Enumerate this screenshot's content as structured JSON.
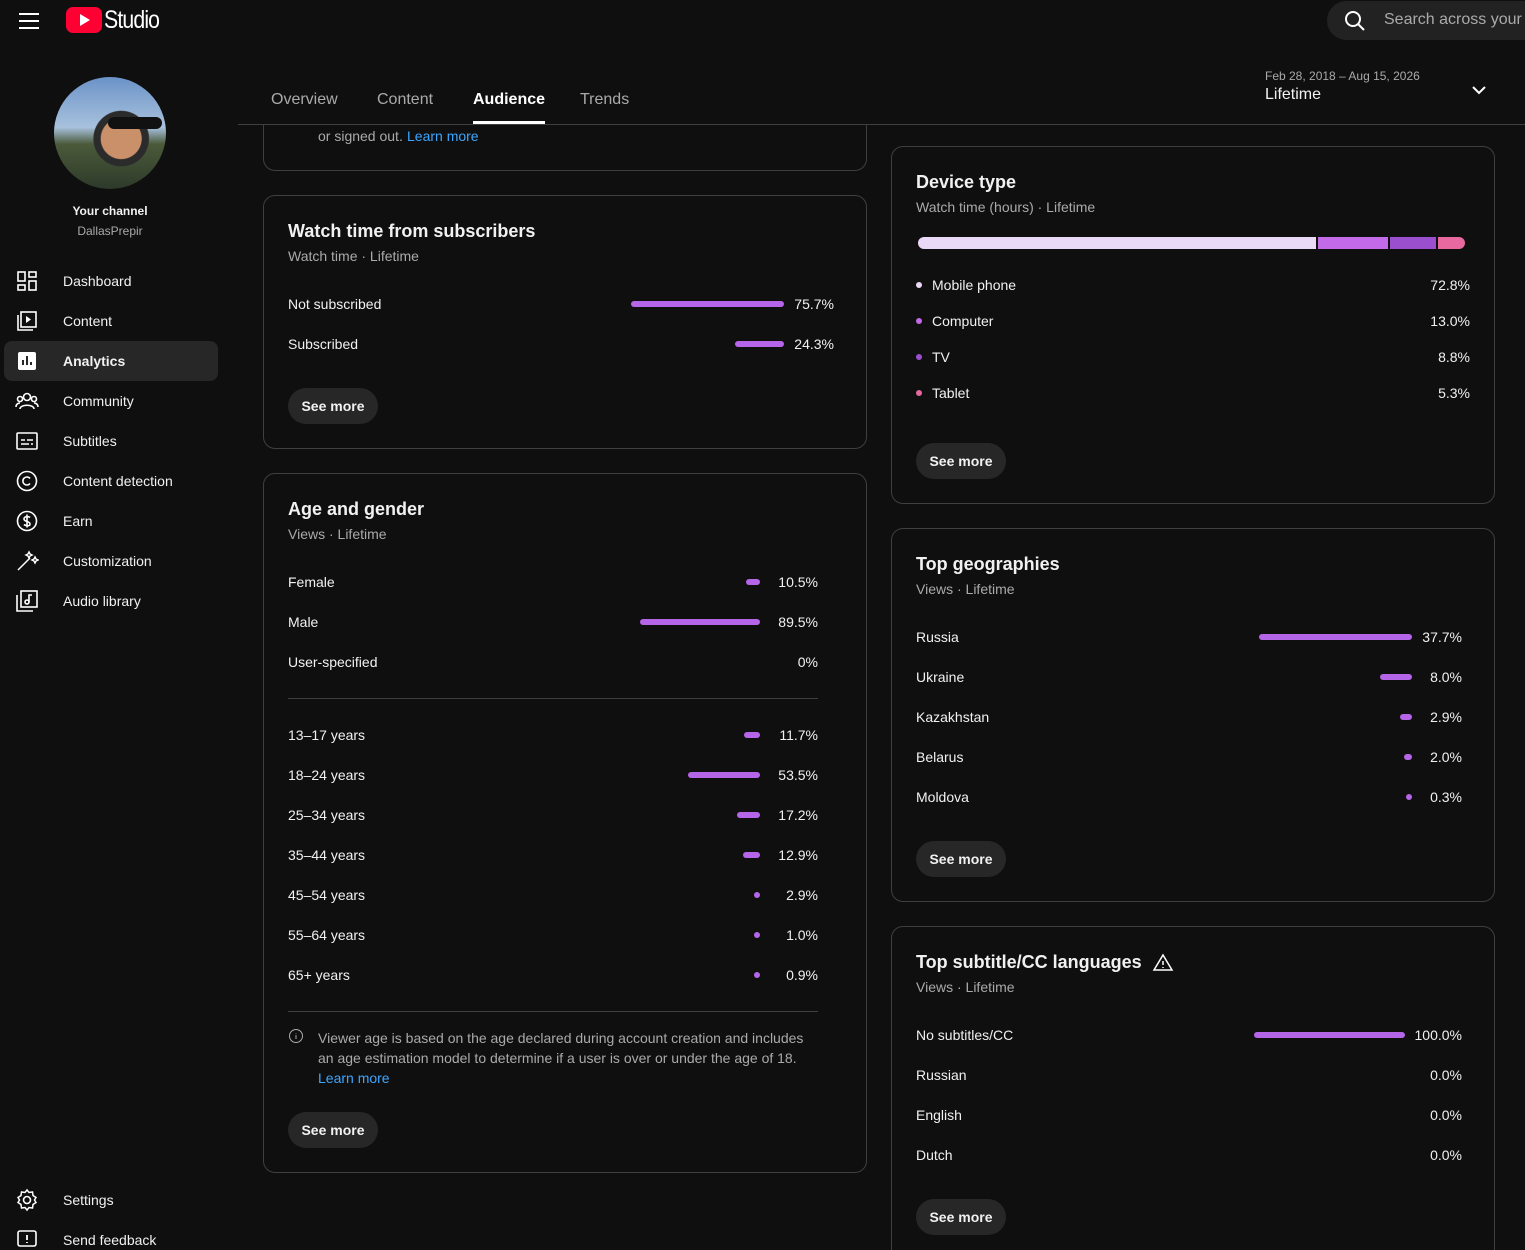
{
  "header": {
    "logo": "Studio",
    "search_placeholder": "Search across your"
  },
  "sidebar": {
    "channel_label": "Your channel",
    "channel_name": "DallasPrepir",
    "nav": [
      "Dashboard",
      "Content",
      "Analytics",
      "Community",
      "Subtitles",
      "Content detection",
      "Earn",
      "Customization",
      "Audio library"
    ],
    "active_nav": 2,
    "bottom": [
      "Settings",
      "Send feedback"
    ]
  },
  "tabs": [
    "Overview",
    "Content",
    "Audience",
    "Trends"
  ],
  "active_tab": 2,
  "date_range": {
    "dates": "Feb 28, 2018 – Aug 15, 2026",
    "label": "Lifetime"
  },
  "bar_color": "#b565e8",
  "partial_card": {
    "text": "or signed out.",
    "link": "Learn more"
  },
  "watch_time_subscribers": {
    "title": "Watch time from subscribers",
    "subtitle": "Watch time · Lifetime",
    "rows": [
      {
        "label": "Not subscribed",
        "value": 75.7,
        "value_label": "75.7%"
      },
      {
        "label": "Subscribed",
        "value": 24.3,
        "value_label": "24.3%"
      }
    ],
    "button": "See more"
  },
  "age_gender": {
    "title": "Age and gender",
    "subtitle": "Views · Lifetime",
    "gender_rows": [
      {
        "label": "Female",
        "value": 10.5,
        "value_label": "10.5%"
      },
      {
        "label": "Male",
        "value": 89.5,
        "value_label": "89.5%"
      },
      {
        "label": "User-specified",
        "value": 0,
        "value_label": "0%"
      }
    ],
    "age_rows": [
      {
        "label": "13–17 years",
        "value": 11.7,
        "value_label": "11.7%"
      },
      {
        "label": "18–24 years",
        "value": 53.5,
        "value_label": "53.5%"
      },
      {
        "label": "25–34 years",
        "value": 17.2,
        "value_label": "17.2%"
      },
      {
        "label": "35–44 years",
        "value": 12.9,
        "value_label": "12.9%"
      },
      {
        "label": "45–54 years",
        "value": 2.9,
        "value_label": "2.9%"
      },
      {
        "label": "55–64 years",
        "value": 1.0,
        "value_label": "1.0%"
      },
      {
        "label": "65+ years",
        "value": 0.9,
        "value_label": "0.9%"
      }
    ],
    "note": "Viewer age is based on the age declared during account creation and includes an age estimation model to determine if a user is over or under the age of 18.",
    "link": "Learn more",
    "button": "See more"
  },
  "device_type": {
    "title": "Device type",
    "subtitle": "Watch time (hours) · Lifetime",
    "rows": [
      {
        "label": "Mobile phone",
        "value": 72.8,
        "value_label": "72.8%",
        "color": "#ead8f7"
      },
      {
        "label": "Computer",
        "value": 13.0,
        "value_label": "13.0%",
        "color": "#c36ae8"
      },
      {
        "label": "TV",
        "value": 8.8,
        "value_label": "8.8%",
        "color": "#9a4fcf"
      },
      {
        "label": "Tablet",
        "value": 5.3,
        "value_label": "5.3%",
        "color": "#e8699f"
      }
    ],
    "button": "See more"
  },
  "top_geographies": {
    "title": "Top geographies",
    "subtitle": "Views · Lifetime",
    "rows": [
      {
        "label": "Russia",
        "value": 37.7,
        "value_label": "37.7%"
      },
      {
        "label": "Ukraine",
        "value": 8.0,
        "value_label": "8.0%"
      },
      {
        "label": "Kazakhstan",
        "value": 2.9,
        "value_label": "2.9%"
      },
      {
        "label": "Belarus",
        "value": 2.0,
        "value_label": "2.0%"
      },
      {
        "label": "Moldova",
        "value": 0.3,
        "value_label": "0.3%"
      }
    ],
    "button": "See more"
  },
  "top_subtitle_languages": {
    "title": "Top subtitle/CC languages",
    "subtitle": "Views · Lifetime",
    "rows": [
      {
        "label": "No subtitles/CC",
        "value": 100.0,
        "value_label": "100.0%"
      },
      {
        "label": "Russian",
        "value": 0.0,
        "value_label": "0.0%"
      },
      {
        "label": "English",
        "value": 0.0,
        "value_label": "0.0%"
      },
      {
        "label": "Dutch",
        "value": 0.0,
        "value_label": "0.0%"
      }
    ],
    "button": "See more"
  }
}
